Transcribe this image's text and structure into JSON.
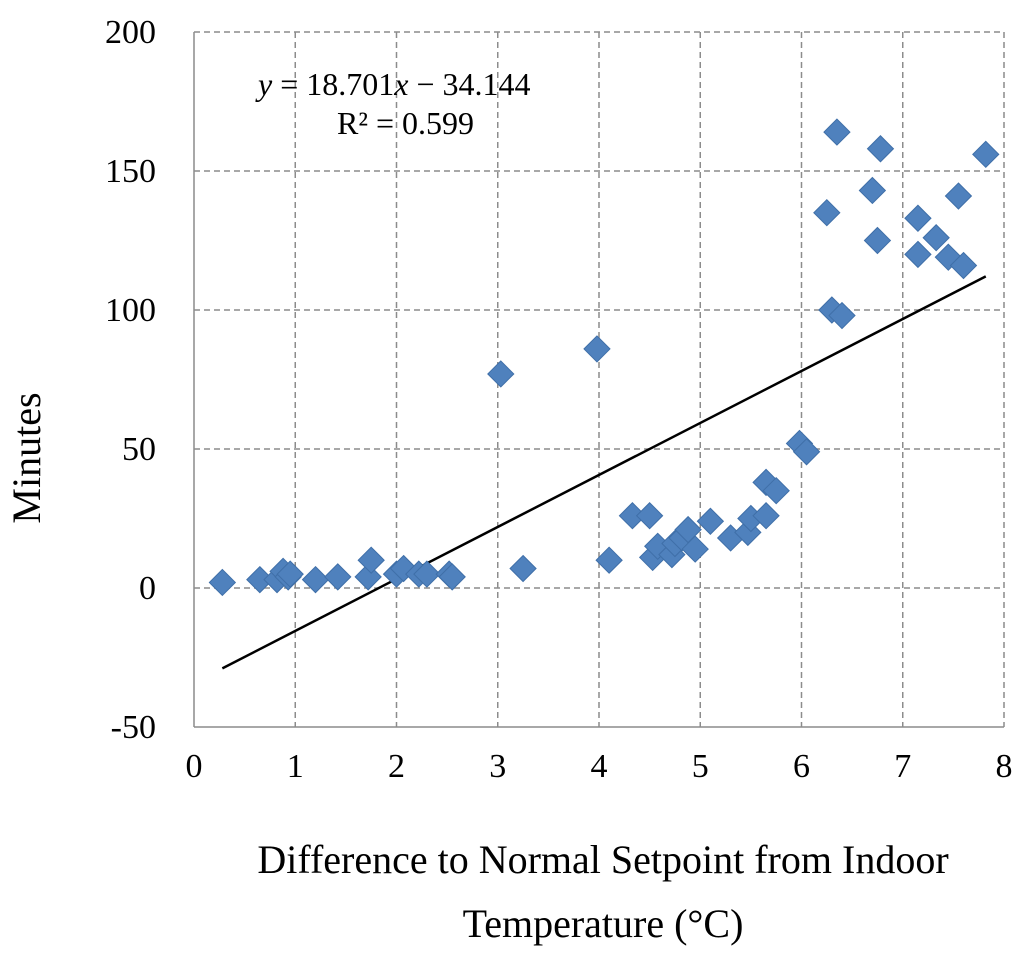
{
  "chart_data": {
    "type": "scatter",
    "title": "",
    "xlabel_line1": "Difference to Normal Setpoint from Indoor",
    "xlabel_line2": "Temperature (°C)",
    "ylabel": "Minutes",
    "xlim": [
      0,
      8
    ],
    "ylim": [
      -50,
      200
    ],
    "x_ticks": [
      0,
      1,
      2,
      3,
      4,
      5,
      6,
      7,
      8
    ],
    "y_ticks": [
      -50,
      0,
      50,
      100,
      150,
      200
    ],
    "grid": true,
    "series": [
      {
        "name": "Minutes",
        "marker": "diamond",
        "color": "#4F81BD",
        "points": [
          [
            0.28,
            2
          ],
          [
            0.65,
            3
          ],
          [
            0.82,
            3
          ],
          [
            0.88,
            6
          ],
          [
            0.93,
            4
          ],
          [
            0.95,
            5
          ],
          [
            1.2,
            3
          ],
          [
            1.42,
            4
          ],
          [
            1.72,
            4
          ],
          [
            1.75,
            10
          ],
          [
            2.0,
            5
          ],
          [
            2.07,
            7
          ],
          [
            2.22,
            5
          ],
          [
            2.3,
            5
          ],
          [
            2.52,
            5
          ],
          [
            2.55,
            4
          ],
          [
            3.03,
            77
          ],
          [
            3.25,
            7
          ],
          [
            3.98,
            86
          ],
          [
            4.1,
            10
          ],
          [
            4.33,
            26
          ],
          [
            4.5,
            26
          ],
          [
            4.53,
            11
          ],
          [
            4.58,
            15
          ],
          [
            4.72,
            12
          ],
          [
            4.75,
            16
          ],
          [
            4.82,
            18
          ],
          [
            4.88,
            21
          ],
          [
            4.95,
            14
          ],
          [
            5.1,
            24
          ],
          [
            5.3,
            18
          ],
          [
            5.47,
            20
          ],
          [
            5.5,
            25
          ],
          [
            5.65,
            26
          ],
          [
            5.65,
            38
          ],
          [
            5.75,
            35
          ],
          [
            5.98,
            52
          ],
          [
            6.05,
            49
          ],
          [
            6.25,
            135
          ],
          [
            6.3,
            100
          ],
          [
            6.35,
            164
          ],
          [
            6.4,
            98
          ],
          [
            6.7,
            143
          ],
          [
            6.75,
            125
          ],
          [
            6.78,
            158
          ],
          [
            7.15,
            133
          ],
          [
            7.15,
            120
          ],
          [
            7.33,
            126
          ],
          [
            7.45,
            119
          ],
          [
            7.55,
            141
          ],
          [
            7.6,
            116
          ],
          [
            7.82,
            156
          ]
        ]
      }
    ],
    "trendline": {
      "slope": 18.701,
      "intercept": -34.144,
      "x_range": [
        0.28,
        7.82
      ],
      "equation_prefix": "y",
      "equation_mid": " = 18.701",
      "equation_var": "x",
      "equation_suffix": " − 34.144",
      "r_squared_label": "R² = 0.599"
    }
  }
}
